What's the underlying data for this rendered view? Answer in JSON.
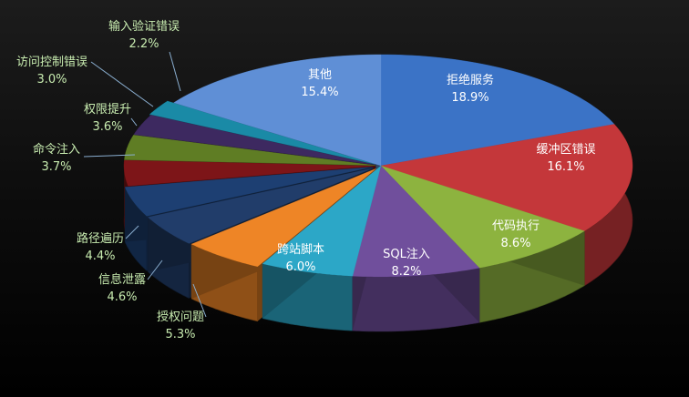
{
  "chart_data": {
    "type": "pie",
    "variant": "3d-exploded",
    "title": "",
    "slices": [
      {
        "label": "拒绝服务",
        "value": 18.9,
        "text": "18.9%",
        "color": "#3b73c6",
        "label_inside": true
      },
      {
        "label": "缓冲区错误",
        "value": 16.1,
        "text": "16.1%",
        "color": "#c4373a",
        "label_inside": true
      },
      {
        "label": "代码执行",
        "value": 8.6,
        "text": "8.6%",
        "color": "#8db33f",
        "label_inside": true
      },
      {
        "label": "SQL注入",
        "value": 8.2,
        "text": "8.2%",
        "color": "#704f9c",
        "label_inside": true
      },
      {
        "label": "跨站脚本",
        "value": 6.0,
        "text": "6.0%",
        "color": "#2ca7c7",
        "label_inside": true
      },
      {
        "label": "授权问题",
        "value": 5.3,
        "text": "5.3%",
        "color": "#ee8526",
        "label_inside": false
      },
      {
        "label": "信息泄露",
        "value": 4.6,
        "text": "4.6%",
        "color": "#213d6a",
        "label_inside": false
      },
      {
        "label": "路径遍历",
        "value": 4.4,
        "text": "4.4%",
        "color": "#1d3f72",
        "label_inside": false
      },
      {
        "label": "命令注入",
        "value": 3.7,
        "text": "3.7%",
        "color": "#7d1518",
        "label_inside": false
      },
      {
        "label": "权限提升",
        "value": 3.6,
        "text": "3.6%",
        "color": "#5f7d24",
        "label_inside": false
      },
      {
        "label": "访问控制错误",
        "value": 3.0,
        "text": "3.0%",
        "color": "#3d2960",
        "label_inside": false
      },
      {
        "label": "输入验证错误",
        "value": 2.2,
        "text": "2.2%",
        "color": "#1a8aa6",
        "label_inside": false
      },
      {
        "label": "其他",
        "value": 15.4,
        "text": "15.4%",
        "color": "#5f8fd6",
        "label_inside": true
      }
    ],
    "label_color_inside": "#ffffff",
    "label_color_outside": "#c8ecb0",
    "leader_color": "#8aaed0",
    "legend": "none"
  }
}
